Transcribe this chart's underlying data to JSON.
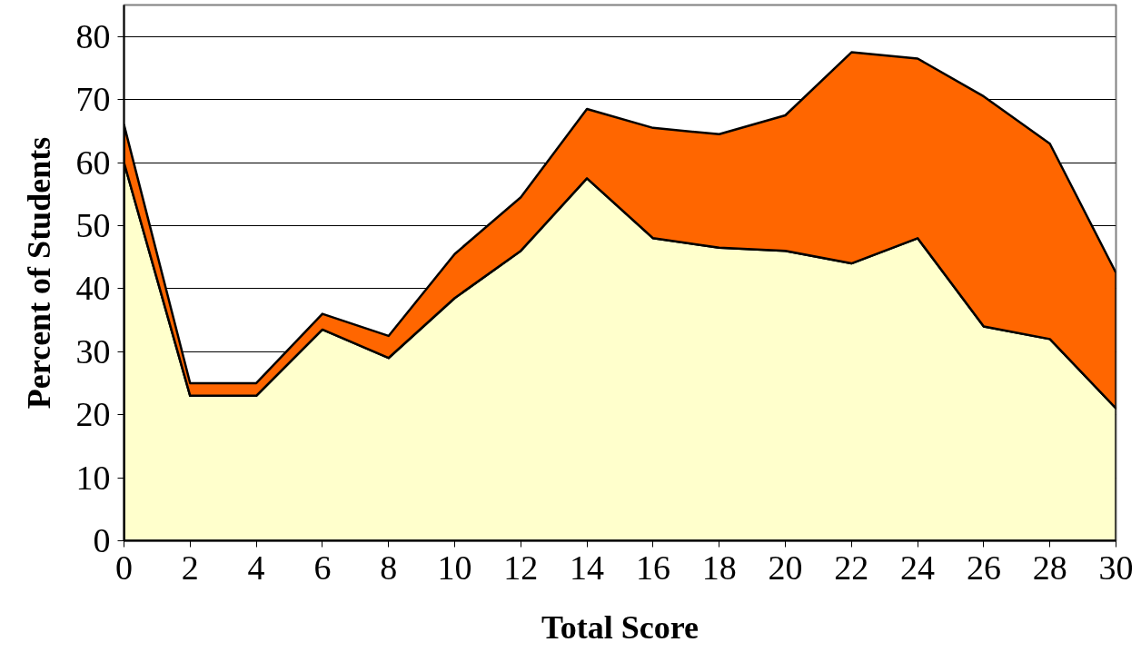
{
  "chart_data": {
    "type": "area",
    "stacked": true,
    "xlabel": "Total Score",
    "ylabel": "Percent of Students",
    "x": [
      0,
      2,
      4,
      6,
      8,
      10,
      12,
      14,
      16,
      18,
      20,
      22,
      24,
      26,
      28,
      30
    ],
    "xlim": [
      0,
      30
    ],
    "xticks": [
      0,
      2,
      4,
      6,
      8,
      10,
      12,
      14,
      16,
      18,
      20,
      22,
      24,
      26,
      28,
      30
    ],
    "ylim": [
      0,
      85
    ],
    "yticks": [
      0,
      10,
      20,
      30,
      40,
      50,
      60,
      70,
      80
    ],
    "grid": "y",
    "series": [
      {
        "color": "#ffffcc",
        "values": [
          60,
          23,
          23,
          33.5,
          29,
          38.5,
          46,
          57.5,
          48,
          46.5,
          46,
          44,
          48,
          34,
          32,
          21
        ]
      },
      {
        "color": "#ff6600",
        "values": [
          6,
          2,
          2,
          2.5,
          3.5,
          7,
          8.5,
          11,
          17.5,
          18,
          21.5,
          33.5,
          28.5,
          36.5,
          31,
          21.5
        ]
      }
    ]
  }
}
